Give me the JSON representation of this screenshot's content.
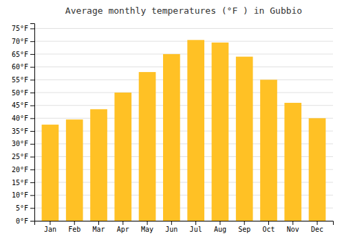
{
  "chart_data": {
    "type": "bar",
    "title": "Average monthly temperatures (°F ) in Gubbio",
    "categories": [
      "Jan",
      "Feb",
      "Mar",
      "Apr",
      "May",
      "Jun",
      "Jul",
      "Aug",
      "Sep",
      "Oct",
      "Nov",
      "Dec"
    ],
    "values": [
      37.5,
      39.5,
      43.5,
      50.0,
      58.0,
      65.0,
      70.5,
      69.5,
      64.0,
      55.0,
      46.0,
      40.0
    ],
    "color": "#FFC125",
    "ylim": [
      0,
      77
    ],
    "yticks": [
      {
        "value": 0,
        "label": "0°F"
      },
      {
        "value": 5,
        "label": "5°F"
      },
      {
        "value": 10,
        "label": "10°F"
      },
      {
        "value": 15,
        "label": "15°F"
      },
      {
        "value": 20,
        "label": "20°F"
      },
      {
        "value": 25,
        "label": "25°F"
      },
      {
        "value": 30,
        "label": "30°F"
      },
      {
        "value": 35,
        "label": "35°F"
      },
      {
        "value": 40,
        "label": "40°F"
      },
      {
        "value": 45,
        "label": "45°F"
      },
      {
        "value": 50,
        "label": "50°F"
      },
      {
        "value": 55,
        "label": "55°F"
      },
      {
        "value": 60,
        "label": "60°F"
      },
      {
        "value": 65,
        "label": "65°F"
      },
      {
        "value": 70,
        "label": "70°F"
      },
      {
        "value": 75,
        "label": "75°F"
      }
    ],
    "grid": true
  }
}
